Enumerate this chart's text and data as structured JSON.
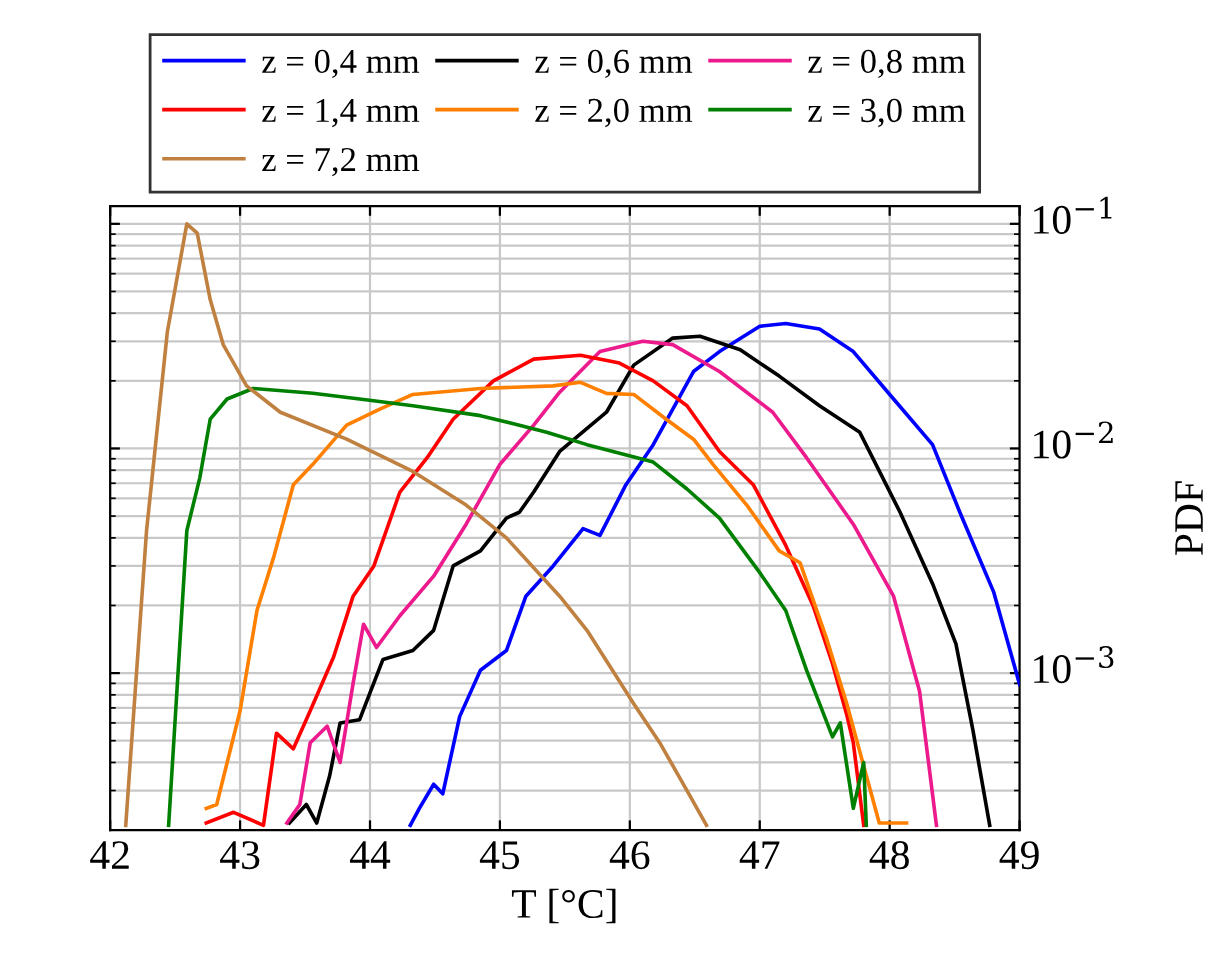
{
  "chart_data": {
    "type": "line",
    "xlabel": "T [°C]",
    "ylabel": "PDF",
    "xlim": [
      42,
      49
    ],
    "xticks": [
      42,
      43,
      44,
      45,
      46,
      47,
      48,
      49
    ],
    "ylim": [
      0.0002,
      0.12
    ],
    "yticks": [
      {
        "value": 0.1,
        "label": "10$^{−1}$"
      },
      {
        "value": 0.01,
        "label": "10$^{−2}$"
      },
      {
        "value": 0.001,
        "label": "10$^{−3}$"
      }
    ],
    "log": "y",
    "grid": true,
    "legend": "top",
    "line_style": "solid",
    "marker": "none",
    "series": [
      {
        "name": "z = 0,4 mm",
        "color": "#0000ff",
        "x": [
          44.31,
          44.38,
          44.49,
          44.56,
          44.69,
          44.85,
          45.05,
          45.2,
          45.41,
          45.64,
          45.77,
          45.97,
          46.18,
          46.49,
          46.69,
          47.0,
          47.2,
          47.46,
          47.72,
          48.03,
          48.33,
          48.54,
          48.8,
          49.0
        ],
        "values": [
          0.00021,
          0.00025,
          0.00032,
          0.00029,
          0.00064,
          0.00103,
          0.00126,
          0.0022,
          0.003,
          0.0044,
          0.0041,
          0.0069,
          0.0104,
          0.022,
          0.027,
          0.035,
          0.036,
          0.034,
          0.027,
          0.0166,
          0.0104,
          0.0052,
          0.0023,
          0.00089
        ]
      },
      {
        "name": "z = 0,6 mm",
        "color": "#000000",
        "x": [
          43.38,
          43.51,
          43.59,
          43.69,
          43.77,
          43.92,
          44.1,
          44.33,
          44.49,
          44.64,
          44.85,
          45.05,
          45.15,
          45.26,
          45.46,
          45.82,
          46.03,
          46.33,
          46.54,
          46.85,
          47.15,
          47.46,
          47.77,
          48.08,
          48.33,
          48.51,
          48.64,
          48.77
        ],
        "values": [
          0.000215,
          0.00026,
          0.000215,
          0.00035,
          0.0006,
          0.00062,
          0.00115,
          0.00126,
          0.00155,
          0.003,
          0.0035,
          0.0049,
          0.0052,
          0.0064,
          0.0097,
          0.0145,
          0.0235,
          0.031,
          0.0316,
          0.0275,
          0.021,
          0.0155,
          0.0118,
          0.0052,
          0.0025,
          0.00135,
          0.00056,
          0.00021
        ]
      },
      {
        "name": "z = 0,8 mm",
        "color": "#ec1a8c",
        "x": [
          43.36,
          43.46,
          43.54,
          43.67,
          43.77,
          43.87,
          43.95,
          44.05,
          44.23,
          44.49,
          44.74,
          45.0,
          45.26,
          45.46,
          45.77,
          46.1,
          46.33,
          46.69,
          47.1,
          47.36,
          47.72,
          48.03,
          48.23,
          48.36
        ],
        "values": [
          0.000215,
          0.00026,
          0.00049,
          0.00058,
          0.0004,
          0.0009,
          0.00165,
          0.0013,
          0.0018,
          0.0027,
          0.0046,
          0.0085,
          0.0127,
          0.0178,
          0.027,
          0.03,
          0.029,
          0.022,
          0.0145,
          0.0091,
          0.0046,
          0.0022,
          0.00083,
          0.00021
        ]
      },
      {
        "name": "z = 1,4 mm",
        "color": "#ff0000",
        "x": [
          42.74,
          42.95,
          43.18,
          43.28,
          43.41,
          43.54,
          43.72,
          43.87,
          44.03,
          44.23,
          44.44,
          44.64,
          44.95,
          45.26,
          45.62,
          45.92,
          46.18,
          46.44,
          46.69,
          46.95,
          47.2,
          47.41,
          47.56,
          47.67,
          47.72,
          47.8
        ],
        "values": [
          0.000215,
          0.00024,
          0.00021,
          0.00054,
          0.00046,
          0.00068,
          0.00118,
          0.0022,
          0.003,
          0.0064,
          0.0091,
          0.0135,
          0.02,
          0.025,
          0.026,
          0.024,
          0.02,
          0.0155,
          0.0097,
          0.0069,
          0.0037,
          0.002,
          0.0011,
          0.00065,
          0.00049,
          0.00021
        ]
      },
      {
        "name": "z = 2,0 mm",
        "color": "#ff8000",
        "x": [
          42.74,
          42.82,
          43.0,
          43.13,
          43.26,
          43.41,
          43.56,
          43.82,
          44.08,
          44.33,
          44.85,
          45.41,
          45.62,
          45.82,
          46.03,
          46.28,
          46.49,
          46.64,
          46.9,
          47.15,
          47.31,
          47.51,
          47.67,
          47.82,
          47.92,
          48.13
        ],
        "values": [
          0.00025,
          0.00026,
          0.00068,
          0.0019,
          0.0033,
          0.0069,
          0.0085,
          0.0127,
          0.015,
          0.0174,
          0.0185,
          0.019,
          0.0197,
          0.0176,
          0.0174,
          0.0135,
          0.011,
          0.0085,
          0.0056,
          0.0035,
          0.0031,
          0.00145,
          0.00073,
          0.00035,
          0.000215,
          0.000215
        ]
      },
      {
        "name": "z = 3,0 mm",
        "color": "#008000",
        "x": [
          42.45,
          42.59,
          42.69,
          42.77,
          42.9,
          43.1,
          43.56,
          43.92,
          44.33,
          44.85,
          45.15,
          45.36,
          45.67,
          46.18,
          46.44,
          46.69,
          47.0,
          47.2,
          47.36,
          47.56,
          47.62,
          47.72,
          47.8,
          47.82
        ],
        "values": [
          0.00021,
          0.0043,
          0.0074,
          0.0135,
          0.0166,
          0.0185,
          0.0176,
          0.0166,
          0.0155,
          0.014,
          0.0127,
          0.0118,
          0.0104,
          0.0087,
          0.0066,
          0.0049,
          0.0028,
          0.0019,
          0.00103,
          0.00052,
          0.0006,
          0.00025,
          0.0004,
          0.00021
        ]
      },
      {
        "name": "z = 7,2 mm",
        "color": "#bf8040",
        "x": [
          42.12,
          42.28,
          42.44,
          42.59,
          42.67,
          42.77,
          42.87,
          43.05,
          43.31,
          43.82,
          44.33,
          44.74,
          45.05,
          45.46,
          45.67,
          46.03,
          46.23,
          46.44,
          46.59
        ],
        "values": [
          0.00021,
          0.0043,
          0.033,
          0.1,
          0.091,
          0.046,
          0.029,
          0.019,
          0.0145,
          0.011,
          0.0079,
          0.0056,
          0.004,
          0.0022,
          0.00155,
          0.00073,
          0.00049,
          0.0003,
          0.00021
        ]
      }
    ]
  }
}
